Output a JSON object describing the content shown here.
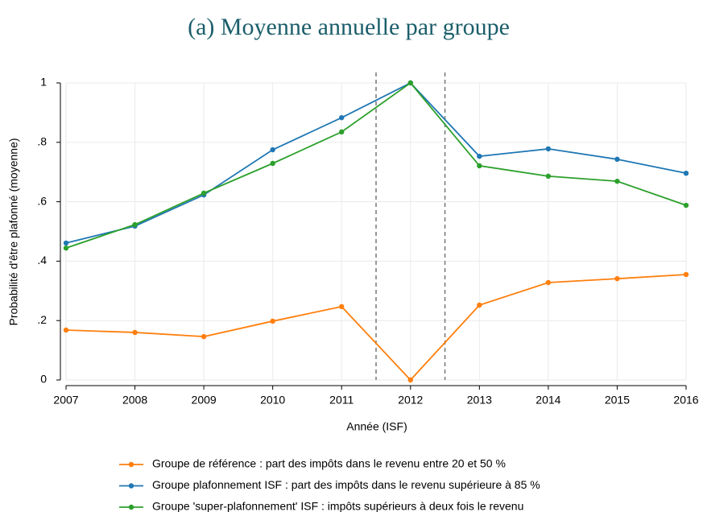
{
  "chart_data": {
    "type": "line",
    "title": "(a) Moyenne annuelle par groupe",
    "x_label": "Année (ISF)",
    "y_label": "Probabilité d'être plafonné (moyenne)",
    "x": [
      2007,
      2008,
      2009,
      2010,
      2011,
      2012,
      2013,
      2014,
      2015,
      2016
    ],
    "series": [
      {
        "name": "Groupe de référence : part des impôts dans le revenu entre 20 et 50 %",
        "color": "#ff7f0e",
        "values": [
          0.168,
          0.16,
          0.146,
          0.198,
          0.247,
          0,
          0.252,
          0.328,
          0.341,
          0.355
        ]
      },
      {
        "name": "Groupe plafonnement ISF : part des impôts dans le revenu supérieure à 85 %",
        "color": "#1f77b4",
        "values": [
          0.461,
          0.518,
          0.623,
          0.775,
          0.883,
          1,
          0.753,
          0.778,
          0.743,
          0.696
        ]
      },
      {
        "name": "Groupe 'super-plafonnement' ISF : impôts supérieurs à deux fois le revenu",
        "color": "#2ca02c",
        "values": [
          0.444,
          0.523,
          0.629,
          0.729,
          0.835,
          1,
          0.721,
          0.686,
          0.669,
          0.588
        ]
      }
    ],
    "xlim": [
      2007,
      2016
    ],
    "xticks": [
      2007,
      2008,
      2009,
      2010,
      2011,
      2012,
      2013,
      2014,
      2015,
      2016
    ],
    "ylim": [
      0,
      1
    ],
    "yticks": [
      0,
      {
        "value": 0.2,
        "label": ".2"
      },
      {
        "value": 0.4,
        "label": ".4"
      },
      {
        "value": 0.6,
        "label": ".6"
      },
      {
        "value": 0.8,
        "label": ".8"
      },
      1
    ],
    "vlines": [
      2011.5,
      2012.5
    ],
    "grid": true,
    "legend": "bottom"
  }
}
